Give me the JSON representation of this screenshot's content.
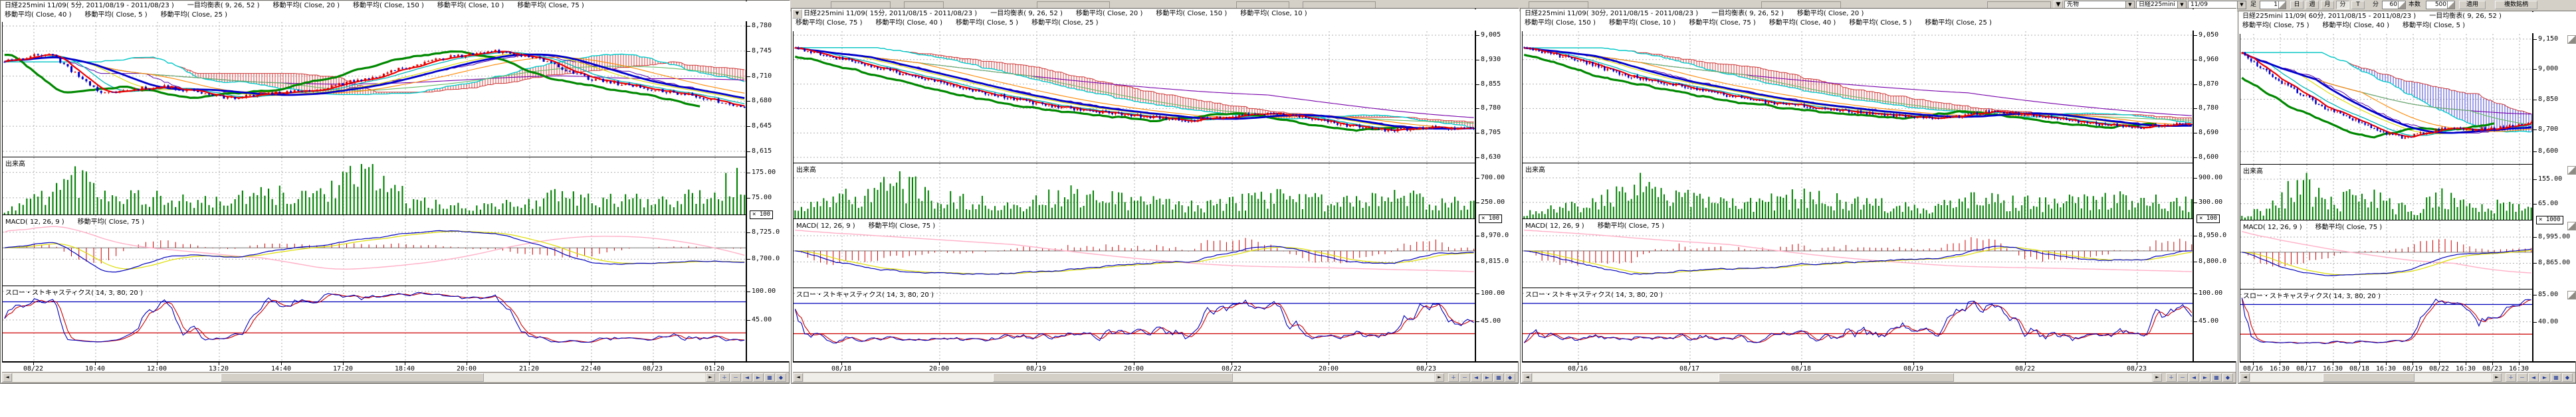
{
  "toolbar": {
    "category_select": {
      "value": "先物"
    },
    "symbol_select": {
      "value": "日経225mini"
    },
    "month_select": {
      "value": "11/09"
    },
    "bar_type_label": "足",
    "bar_type_value": "1",
    "period_buttons": [
      "日",
      "週",
      "月",
      "分",
      "T"
    ],
    "active_period": "分",
    "minutes_label": "分",
    "minutes_value": "60",
    "bar_count_label": "本数",
    "bar_count_value": "500",
    "apply_button": "適用",
    "multi_symbol_button": "複数銘柄",
    "window_menu_glyph": "▼"
  },
  "panels": [
    {
      "header_line1": "日経225mini 11/09( 5分, 2011/08/19 - 2011/08/23 )　　一目均衡表( 9, 26, 52 )　　移動平均( Close, 20 )　　移動平均( Close, 150 )　　移動平均( Close, 10 )　　移動平均( Close, 75 )",
      "header_line2": "移動平均( Close, 40 )　　移動平均( Close, 5 )　　移動平均( Close, 25 )",
      "volume_label": "出来高",
      "macd_label": "MACD( 12, 26, 9 )　　移動平均( Close, 75 )",
      "stoch_label": "スロー・ストキャスティクス( 14, 3, 80, 20 )",
      "axis": {
        "price": [
          "8,780",
          "8,745",
          "8,710",
          "8,680",
          "8,645",
          "8,615"
        ],
        "volume": [
          "175.00",
          "75.00"
        ],
        "volume_multiplier": "× 100",
        "macd": [
          "8,725.0",
          "8,700.0"
        ],
        "stoch": [
          "100.00",
          "45.00"
        ]
      },
      "time_axis": [
        "08/22",
        "10:40",
        "12:00",
        "13:20",
        "14:40",
        "17:20",
        "18:40",
        "20:00",
        "21:20",
        "22:40",
        "08/23",
        "01:20"
      ]
    },
    {
      "window_menu": "▼",
      "header_line1": "日経225mini 11/09( 15分, 2011/08/15 - 2011/08/23 )　　一目均衡表( 9, 26, 52 )　　移動平均( Close, 20 )　　移動平均( Close, 150 )　　移動平均( Close, 10 )",
      "header_line2": "移動平均( Close, 75 )　　移動平均( Close, 40 )　　移動平均( Close, 5 )　　移動平均( Close, 25 )",
      "volume_label": "出来高",
      "macd_label": "MACD( 12, 26, 9 )　　移動平均( Close, 75 )",
      "stoch_label": "スロー・ストキャスティクス( 14, 3, 80, 20 )",
      "axis": {
        "price": [
          "9,005",
          "8,930",
          "8,855",
          "8,780",
          "8,705",
          "8,630"
        ],
        "volume": [
          "700.00",
          "250.00"
        ],
        "volume_multiplier": "× 100",
        "macd": [
          "8,970.0",
          "8,815.0"
        ],
        "stoch": [
          "100.00",
          "45.00"
        ]
      },
      "time_axis": [
        "08/18",
        "20:00",
        "08/19",
        "20:00",
        "08/22",
        "20:00",
        "08/23"
      ]
    },
    {
      "header_line1": "日経225mini 11/09( 30分, 2011/08/15 - 2011/08/23 )　　一目均衡表( 9, 26, 52 )　　移動平均( Close, 20 )",
      "header_line2": "移動平均( Close, 150 )　　移動平均( Close, 10 )　　移動平均( Close, 75 )　　移動平均( Close, 40 )　　移動平均( Close, 5 )　　移動平均( Close, 25 )",
      "volume_label": "出来高",
      "macd_label": "MACD( 12, 26, 9 )　　移動平均( Close, 75 )",
      "stoch_label": "スロー・ストキャスティクス( 14, 3, 80, 20 )",
      "axis": {
        "price": [
          "9,050",
          "8,960",
          "8,870",
          "8,780",
          "8,690",
          "8,600"
        ],
        "volume": [
          "900.00",
          "300.00"
        ],
        "volume_multiplier": "× 100",
        "macd": [
          "8,950.0",
          "8,800.0"
        ],
        "stoch": [
          "100.00",
          "45.00"
        ]
      },
      "time_axis": [
        "08/16",
        "08/17",
        "08/18",
        "08/19",
        "08/22",
        "08/23"
      ]
    },
    {
      "header_line1": "日経225mini 11/09( 60分, 2011/08/15 - 2011/08/23 )　　一目均衡表( 9, 26, 52 )",
      "header_line2": "移動平均( Close, 75 )　　移動平均( Close, 40 )　　移動平均( Close, 5 )",
      "volume_label": "出来高",
      "macd_label": "MACD( 12, 26, 9 )　　移動平均( Close, 75 )",
      "stoch_label": "スロー・ストキャスティクス( 14, 3, 80, 20 )",
      "axis": {
        "price": [
          "9,150",
          "9,000",
          "8,850",
          "8,700",
          "8,600"
        ],
        "volume": [
          "155.00",
          "65.00"
        ],
        "volume_multiplier": "× 1000",
        "macd": [
          "8,995.00",
          "8,865.00"
        ],
        "stoch": [
          "85.00",
          "40.00"
        ]
      },
      "time_axis": [
        "08/16",
        "16:30",
        "08/17",
        "16:30",
        "08/18",
        "16:30",
        "08/19",
        "08/22",
        "16:30",
        "08/23",
        "16:30"
      ]
    }
  ],
  "chart_data": [
    {
      "type": "candlestick",
      "title": "日経225mini 11/09 5分足",
      "bars": 200,
      "price_range": [
        8590,
        8800
      ],
      "price_keypoints": [
        [
          0,
          8738
        ],
        [
          0.06,
          8752
        ],
        [
          0.13,
          8690
        ],
        [
          0.22,
          8700
        ],
        [
          0.3,
          8682
        ],
        [
          0.42,
          8695
        ],
        [
          0.5,
          8715
        ],
        [
          0.58,
          8742
        ],
        [
          0.66,
          8755
        ],
        [
          0.72,
          8745
        ],
        [
          0.78,
          8715
        ],
        [
          0.85,
          8700
        ],
        [
          0.92,
          8688
        ],
        [
          1,
          8668
        ]
      ],
      "volume_keypoints": [
        [
          0,
          0.06
        ],
        [
          0.1,
          0.95
        ],
        [
          0.14,
          0.55
        ],
        [
          0.2,
          0.42
        ],
        [
          0.28,
          0.3
        ],
        [
          0.35,
          0.48
        ],
        [
          0.42,
          0.52
        ],
        [
          0.5,
          1.0
        ],
        [
          0.55,
          0.35
        ],
        [
          0.6,
          0.2
        ],
        [
          0.68,
          0.25
        ],
        [
          0.75,
          0.45
        ],
        [
          0.82,
          0.35
        ],
        [
          0.9,
          0.42
        ],
        [
          0.96,
          0.6
        ],
        [
          1,
          0.9
        ]
      ],
      "cloud_color": "#cc2222",
      "seed": 11
    },
    {
      "type": "candlestick",
      "title": "日経225mini 11/09 15分足",
      "bars": 215,
      "price_range": [
        8600,
        9030
      ],
      "price_keypoints": [
        [
          0,
          8975
        ],
        [
          0.08,
          8935
        ],
        [
          0.16,
          8890
        ],
        [
          0.25,
          8845
        ],
        [
          0.33,
          8805
        ],
        [
          0.42,
          8775
        ],
        [
          0.5,
          8755
        ],
        [
          0.58,
          8740
        ],
        [
          0.64,
          8752
        ],
        [
          0.7,
          8764
        ],
        [
          0.76,
          8745
        ],
        [
          0.82,
          8722
        ],
        [
          0.88,
          8708
        ],
        [
          0.94,
          8718
        ],
        [
          1,
          8712
        ]
      ],
      "volume_keypoints": [
        [
          0,
          0.2
        ],
        [
          0.08,
          0.55
        ],
        [
          0.15,
          0.9
        ],
        [
          0.22,
          0.5
        ],
        [
          0.3,
          0.35
        ],
        [
          0.4,
          0.6
        ],
        [
          0.5,
          0.45
        ],
        [
          0.6,
          0.3
        ],
        [
          0.7,
          0.55
        ],
        [
          0.8,
          0.4
        ],
        [
          0.9,
          0.55
        ],
        [
          1,
          0.35
        ]
      ],
      "cloud_color": "#cc2222",
      "seed": 22
    },
    {
      "type": "candlestick",
      "title": "日経225mini 11/09 30分足",
      "bars": 225,
      "price_range": [
        8560,
        9070
      ],
      "price_keypoints": [
        [
          0,
          9005
        ],
        [
          0.08,
          8960
        ],
        [
          0.15,
          8900
        ],
        [
          0.25,
          8850
        ],
        [
          0.35,
          8800
        ],
        [
          0.45,
          8770
        ],
        [
          0.55,
          8745
        ],
        [
          0.62,
          8730
        ],
        [
          0.7,
          8762
        ],
        [
          0.78,
          8740
        ],
        [
          0.85,
          8715
        ],
        [
          0.92,
          8700
        ],
        [
          1,
          8712
        ]
      ],
      "volume_keypoints": [
        [
          0,
          0.15
        ],
        [
          0.1,
          0.4
        ],
        [
          0.18,
          0.85
        ],
        [
          0.25,
          0.5
        ],
        [
          0.33,
          0.35
        ],
        [
          0.42,
          0.55
        ],
        [
          0.5,
          0.4
        ],
        [
          0.6,
          0.3
        ],
        [
          0.68,
          0.5
        ],
        [
          0.78,
          0.38
        ],
        [
          0.88,
          0.5
        ],
        [
          1,
          0.4
        ]
      ],
      "cloud_color": "#cc2222",
      "seed": 33
    },
    {
      "type": "candlestick",
      "title": "日経225mini 11/09 60分足",
      "bars": 95,
      "price_range": [
        8520,
        9180
      ],
      "price_keypoints": [
        [
          0,
          9080
        ],
        [
          0.08,
          8990
        ],
        [
          0.18,
          8900
        ],
        [
          0.28,
          8810
        ],
        [
          0.38,
          8750
        ],
        [
          0.48,
          8690
        ],
        [
          0.56,
          8655
        ],
        [
          0.64,
          8685
        ],
        [
          0.72,
          8705
        ],
        [
          0.8,
          8695
        ],
        [
          0.88,
          8705
        ],
        [
          0.94,
          8715
        ],
        [
          1,
          8730
        ]
      ],
      "volume_keypoints": [
        [
          0,
          0.15
        ],
        [
          0.1,
          0.3
        ],
        [
          0.2,
          1.0
        ],
        [
          0.25,
          0.7
        ],
        [
          0.3,
          0.4
        ],
        [
          0.38,
          0.55
        ],
        [
          0.45,
          0.62
        ],
        [
          0.52,
          0.35
        ],
        [
          0.6,
          0.25
        ],
        [
          0.68,
          0.6
        ],
        [
          0.75,
          0.45
        ],
        [
          0.82,
          0.3
        ],
        [
          0.9,
          0.38
        ],
        [
          1,
          0.28
        ]
      ],
      "cloud_color": "#2222cc",
      "seed": 44
    }
  ],
  "colors": {
    "chrome": "#d4d0c8",
    "grid": "#b0b0b0",
    "candle_up": "#dd0000",
    "candle_down": "#0000cc",
    "volume": "#008000",
    "macd_line": "#0000bb",
    "macd_signal": "#dddd00",
    "macd_hist": "#cc0000",
    "macd_ma": "#ffb0c8",
    "stoch_k": "#0000bb",
    "stoch_d": "#cc0000",
    "stoch_upper": "#0000bb",
    "stoch_lower": "#cc0000"
  }
}
